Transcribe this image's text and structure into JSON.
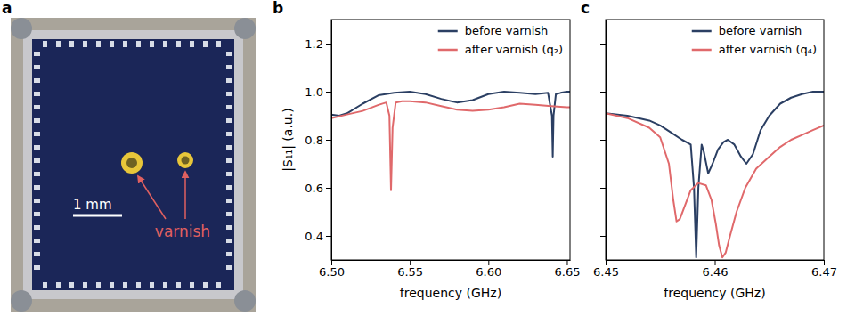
{
  "image_panel": {
    "panel": "a",
    "scale_bar_label": "1 mm",
    "annotation": "varnish"
  },
  "chart_data": [
    {
      "type": "line",
      "panel": "b",
      "xlabel": "frequency (GHz)",
      "ylabel": "|S₁₁| (a.u.)",
      "xlim": [
        6.5,
        6.652
      ],
      "ylim": [
        0.3,
        1.3
      ],
      "xticks": [
        {
          "value": 6.5,
          "label": "6.50"
        },
        6.55,
        {
          "value": 6.6,
          "label": "6.60"
        },
        6.65
      ],
      "yticks": [
        0.4,
        0.6,
        0.8,
        {
          "value": 1,
          "label": "1.0"
        },
        1.2
      ],
      "legend": "upper right",
      "series": [
        {
          "name": "before varnish",
          "color": "#2b3f63",
          "x": [
            6.5,
            6.505,
            6.51,
            6.52,
            6.53,
            6.54,
            6.55,
            6.56,
            6.57,
            6.58,
            6.59,
            6.6,
            6.61,
            6.62,
            6.63,
            6.638,
            6.6405,
            6.641,
            6.6415,
            6.643,
            6.646,
            6.65,
            6.652
          ],
          "values": [
            0.905,
            0.9,
            0.91,
            0.95,
            0.985,
            0.995,
            1.0,
            0.99,
            0.97,
            0.955,
            0.965,
            0.99,
            1.0,
            0.995,
            0.99,
            0.995,
            0.9,
            0.73,
            0.9,
            0.99,
            0.995,
            1.0,
            1.0
          ]
        },
        {
          "name": "after varnish (q₂)",
          "color": "#e0696b",
          "x": [
            6.5,
            6.51,
            6.52,
            6.53,
            6.535,
            6.537,
            6.538,
            6.539,
            6.541,
            6.545,
            6.55,
            6.56,
            6.57,
            6.58,
            6.59,
            6.6,
            6.61,
            6.62,
            6.63,
            6.64,
            6.65,
            6.652
          ],
          "values": [
            0.89,
            0.905,
            0.92,
            0.945,
            0.955,
            0.9,
            0.59,
            0.85,
            0.955,
            0.96,
            0.96,
            0.955,
            0.94,
            0.925,
            0.92,
            0.925,
            0.935,
            0.95,
            0.945,
            0.94,
            0.935,
            0.935
          ]
        }
      ]
    },
    {
      "type": "line",
      "panel": "c",
      "xlabel": "frequency (GHz)",
      "xlim": [
        6.45,
        6.47
      ],
      "ylim": [
        0.3,
        1.3
      ],
      "xticks": [
        6.45,
        6.46,
        6.47
      ],
      "yticks": [
        0.4,
        0.6,
        0.8,
        1.0,
        1.2
      ],
      "tick_labels": "x",
      "legend": "upper right",
      "series": [
        {
          "name": "before varnish",
          "color": "#2b3f63",
          "x": [
            6.45,
            6.452,
            6.454,
            6.455,
            6.456,
            6.457,
            6.4578,
            6.4581,
            6.4583,
            6.4585,
            6.4588,
            6.459,
            6.4594,
            6.4598,
            6.4603,
            6.4608,
            6.4612,
            6.4618,
            6.4624,
            6.4629,
            6.4635,
            6.4642,
            6.465,
            6.466,
            6.467,
            6.468,
            6.469,
            6.47
          ],
          "values": [
            0.91,
            0.9,
            0.88,
            0.86,
            0.83,
            0.8,
            0.78,
            0.6,
            0.31,
            0.6,
            0.78,
            0.75,
            0.66,
            0.7,
            0.76,
            0.79,
            0.8,
            0.78,
            0.73,
            0.7,
            0.74,
            0.84,
            0.9,
            0.95,
            0.975,
            0.99,
            1.0,
            1.0
          ]
        },
        {
          "name": "after varnish (q₄)",
          "color": "#e0696b",
          "x": [
            6.45,
            6.452,
            6.454,
            6.455,
            6.4558,
            6.4562,
            6.4565,
            6.4568,
            6.4573,
            6.4578,
            6.4585,
            6.4592,
            6.4597,
            6.4601,
            6.4604,
            6.4607,
            6.461,
            6.4614,
            6.462,
            6.4628,
            6.4638,
            6.465,
            6.466,
            6.467,
            6.468,
            6.469,
            6.47
          ],
          "values": [
            0.91,
            0.89,
            0.85,
            0.81,
            0.7,
            0.55,
            0.46,
            0.47,
            0.53,
            0.59,
            0.62,
            0.61,
            0.55,
            0.45,
            0.36,
            0.31,
            0.33,
            0.4,
            0.5,
            0.6,
            0.68,
            0.73,
            0.77,
            0.8,
            0.82,
            0.84,
            0.86
          ]
        }
      ]
    }
  ]
}
